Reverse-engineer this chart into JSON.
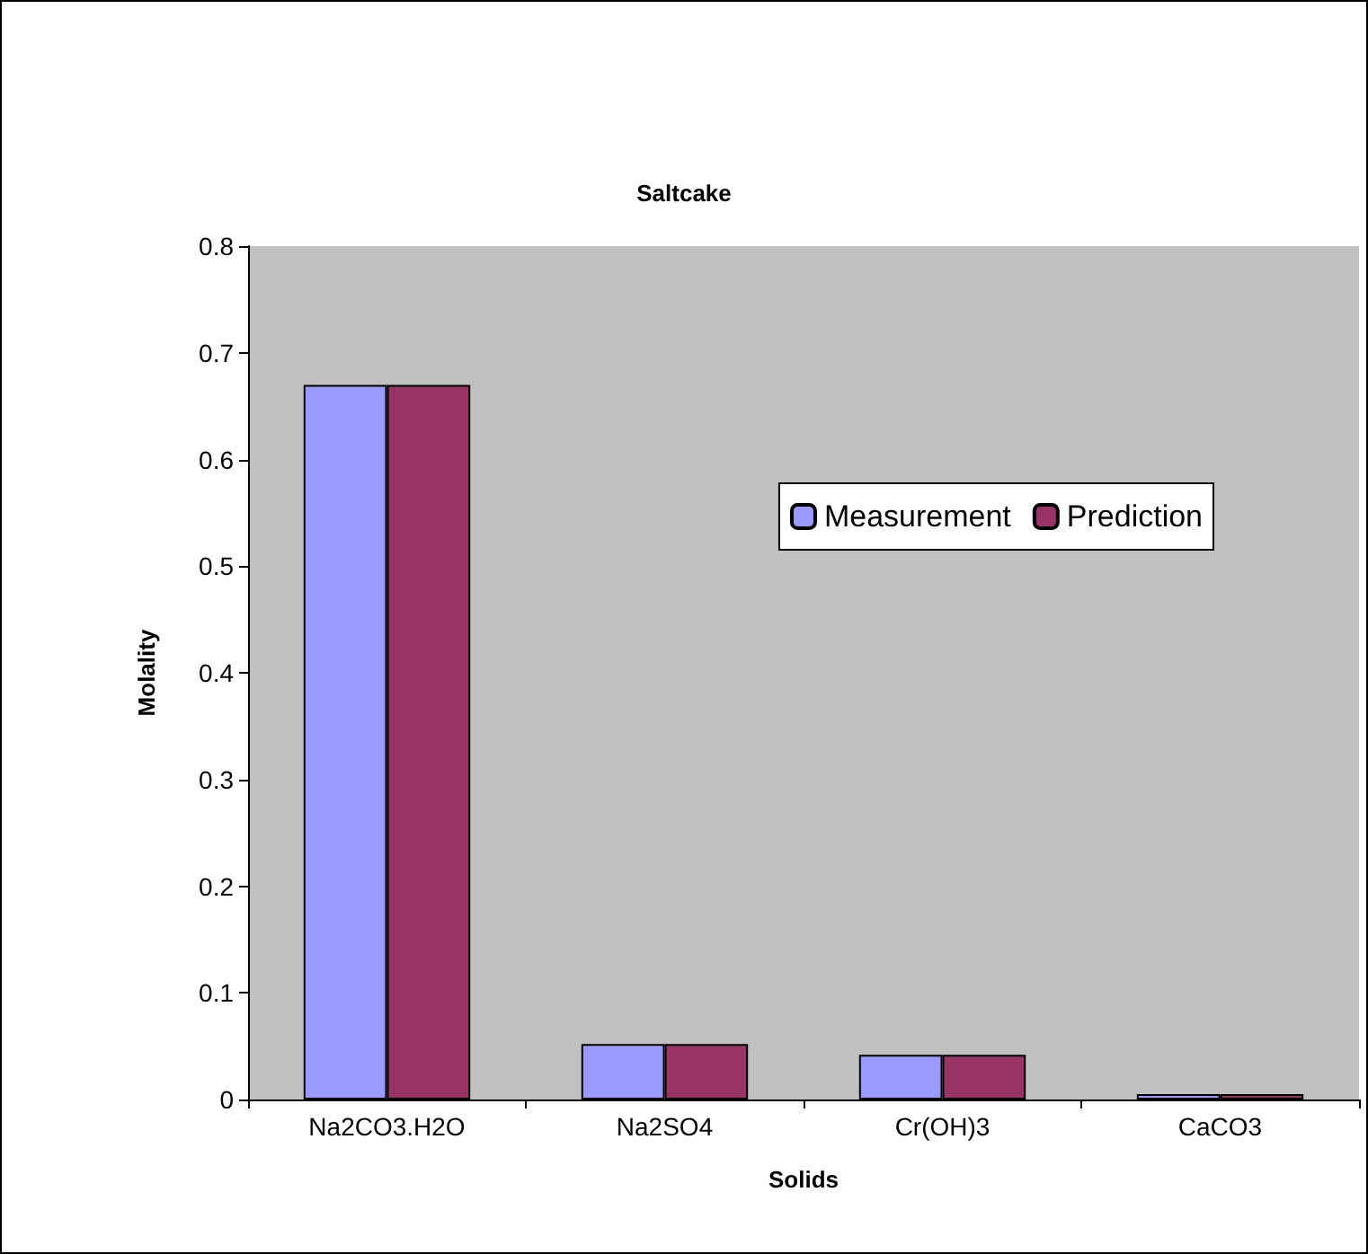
{
  "chart_data": {
    "type": "bar",
    "title": "Saltcake",
    "xlabel": "Solids",
    "ylabel": "Molality",
    "categories": [
      "Na2CO3.H2O",
      "Na2SO4",
      "Cr(OH)3",
      "CaCO3"
    ],
    "series": [
      {
        "name": "Measurement",
        "color": "#9999ff",
        "values": [
          0.67,
          0.052,
          0.042,
          0.005
        ]
      },
      {
        "name": "Prediction",
        "color": "#993366",
        "values": [
          0.67,
          0.052,
          0.042,
          0.005
        ]
      }
    ],
    "ylim": [
      0,
      0.8
    ],
    "yticks": [
      0,
      0.1,
      0.2,
      0.3,
      0.4,
      0.5,
      0.6,
      0.7,
      0.8
    ],
    "grid": false,
    "legend": "top right"
  }
}
